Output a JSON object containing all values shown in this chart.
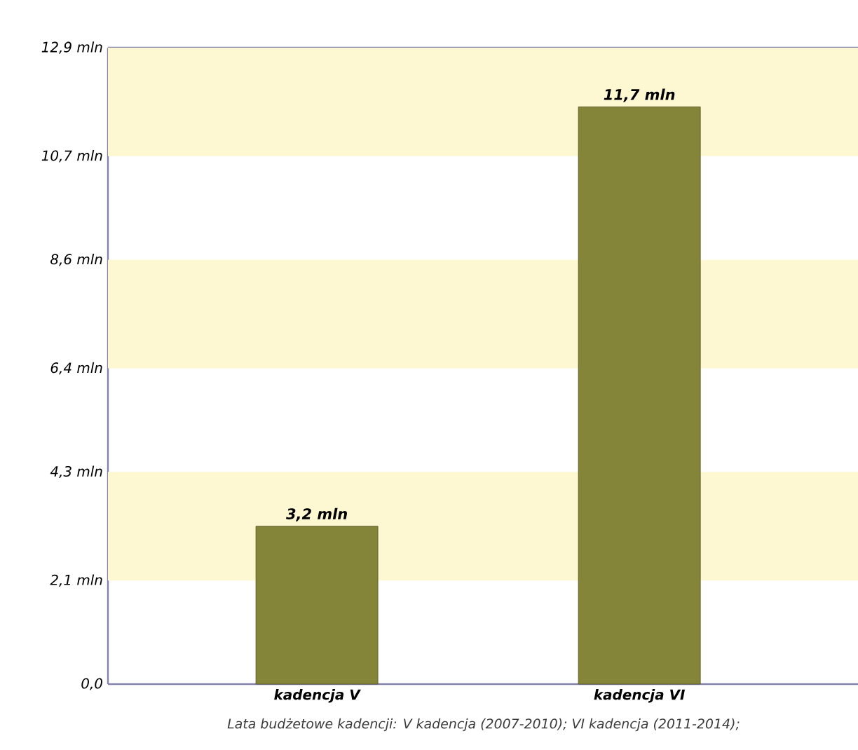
{
  "chart_data": {
    "type": "bar",
    "categories": [
      "kadencja V",
      "kadencja VI"
    ],
    "values": [
      3.2,
      11.7
    ],
    "value_labels": [
      "3,2 mln",
      "11,7 mln"
    ],
    "color": "#85853a",
    "ylim": [
      0,
      12.9
    ],
    "yticks": [
      {
        "value": 0,
        "label": "0,0"
      },
      {
        "value": 2.1,
        "label": "2,1 mln"
      },
      {
        "value": 4.3,
        "label": "4,3 mln"
      },
      {
        "value": 6.4,
        "label": "6,4 mln"
      },
      {
        "value": 8.6,
        "label": "8,6 mln"
      },
      {
        "value": 10.7,
        "label": "10,7 mln"
      },
      {
        "value": 12.9,
        "label": "12,9 mln"
      }
    ],
    "bands": [
      {
        "axis": "y",
        "from": 2.1,
        "to": 4.3,
        "color": "#fdf8d2"
      },
      {
        "axis": "y",
        "from": 6.4,
        "to": 8.6,
        "color": "#fdf8d2"
      },
      {
        "axis": "y",
        "from": 10.7,
        "to": 12.9,
        "color": "#fdf8d2"
      }
    ],
    "annotations": [
      "Lata budżetowe kadencji: V kadencja (2007-2010); VI kadencja (2011-2014);"
    ]
  }
}
